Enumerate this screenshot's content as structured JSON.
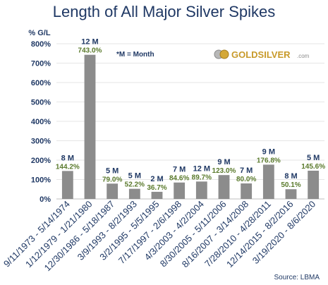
{
  "chart_data": {
    "type": "bar",
    "title": "Length of All Major Silver Spikes",
    "ylabel": "% G/L",
    "ylim": [
      0,
      800
    ],
    "yticks": [
      "0%",
      "100%",
      "200%",
      "300%",
      "400%",
      "500%",
      "600%",
      "700%",
      "800%"
    ],
    "grid": true,
    "legend_note": "*M = Month",
    "categories": [
      "9/11/1973 - 5/14/1974",
      "1/12/1979 - 1/21/1980",
      "12/30/1986 - 5/18/1987",
      "3/9/1993 - 8/2/1993",
      "3/2/1995 - 5/5/1995",
      "7/17/1997 - 2/6/1998",
      "4/3/2003 - 4/2/2004",
      "8/30/2005 - 5/11/2006",
      "8/16/2007 - 3/14/2008",
      "7/28/2010 - 4/28/2011",
      "12/14/2015 - 8/2/2016",
      "3/19/2020 - 8/6/2020"
    ],
    "values": [
      144.2,
      743.0,
      79.0,
      52.2,
      36.7,
      84.6,
      89.7,
      123.0,
      80.0,
      176.8,
      50.1,
      145.6
    ],
    "value_labels": [
      "144.2%",
      "743.0%",
      "79.0%",
      "52.2%",
      "36.7%",
      "84.6%",
      "89.7%",
      "123.0%",
      "80.0%",
      "176.8%",
      "50.1%",
      "145.6%"
    ],
    "duration_labels": [
      "8 M",
      "12 M",
      "5 M",
      "5 M",
      "2 M",
      "7 M",
      "12 M",
      "9 M",
      "7 M",
      "9 M",
      "8 M",
      "5 M"
    ],
    "source": "Source: LBMA",
    "logo_text": "GOLDSILVER",
    "logo_suffix": ".com",
    "colors": {
      "bar": "#8c8c8c",
      "value_label": "#5a7a2c",
      "duration_label": "#1f3864",
      "axis_text": "#1f3864",
      "grid": "#e6e6e6",
      "title": "#1f3864",
      "logo": "#c89a2a"
    }
  }
}
